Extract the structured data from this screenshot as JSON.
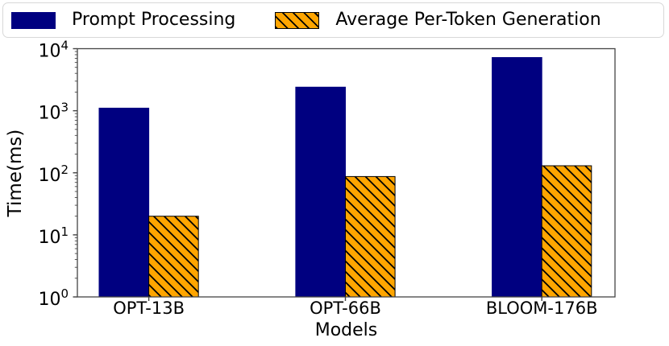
{
  "legend": {
    "entries": [
      {
        "label": "Prompt Processing",
        "color": "#000080",
        "hatch": "none"
      },
      {
        "label": "Average Per-Token Generation",
        "color": "#FFA500",
        "hatch": "diagonal-black"
      }
    ]
  },
  "chart_data": {
    "type": "bar",
    "title": "",
    "xlabel": "Models",
    "ylabel": "Time(ms)",
    "y_scale": "log",
    "ylim": [
      1,
      10000
    ],
    "grid": false,
    "legend_position": "top",
    "categories": [
      "OPT-13B",
      "OPT-66B",
      "BLOOM-176B"
    ],
    "series": [
      {
        "name": "Prompt Processing",
        "color": "#000080",
        "hatch": "none",
        "values": [
          1100,
          2400,
          7200
        ]
      },
      {
        "name": "Average Per-Token Generation",
        "color": "#FFA500",
        "hatch": "diagonal-black",
        "values": [
          20,
          87,
          130
        ]
      }
    ],
    "yticks": [
      {
        "value": 1,
        "base": "10",
        "exp": "0"
      },
      {
        "value": 10,
        "base": "10",
        "exp": "1"
      },
      {
        "value": 100,
        "base": "10",
        "exp": "2"
      },
      {
        "value": 1000,
        "base": "10",
        "exp": "3"
      },
      {
        "value": 10000,
        "base": "10",
        "exp": "4"
      }
    ],
    "colors": {
      "axis": "#444444",
      "bar1": "#000080",
      "bar2": "#FFA500",
      "hatch": "#000000"
    }
  }
}
